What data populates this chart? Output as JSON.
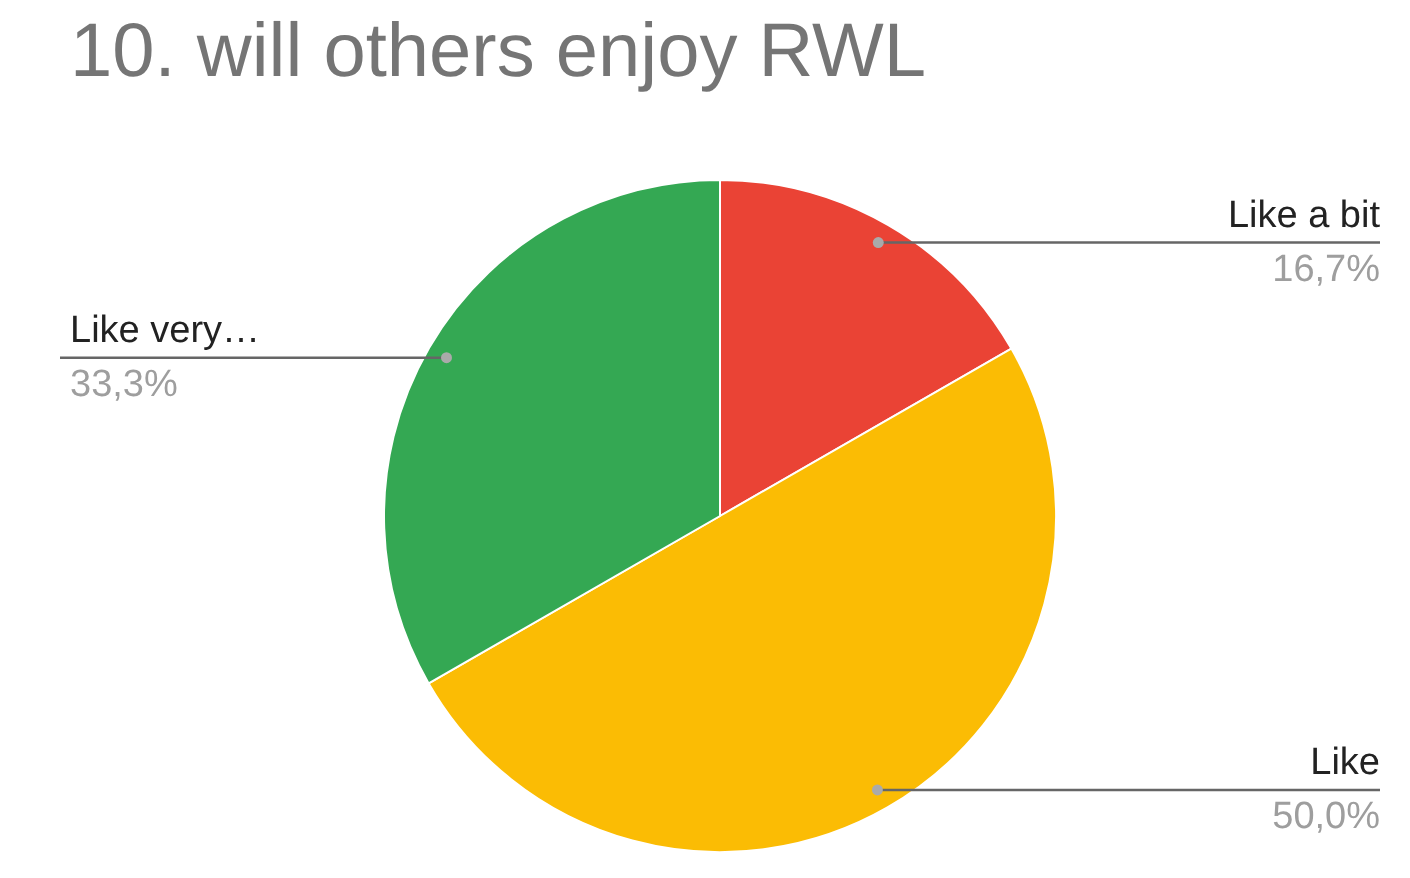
{
  "chart_data": {
    "type": "pie",
    "title": "10. will others enjoy RWL",
    "categories": [
      "Like a bit",
      "Like",
      "Like very…"
    ],
    "values": [
      16.7,
      50.0,
      33.3
    ],
    "colors": [
      "#ea4335",
      "#fbbc04",
      "#34a853"
    ],
    "value_labels": [
      "16,7%",
      "50,0%",
      "33,3%"
    ]
  }
}
